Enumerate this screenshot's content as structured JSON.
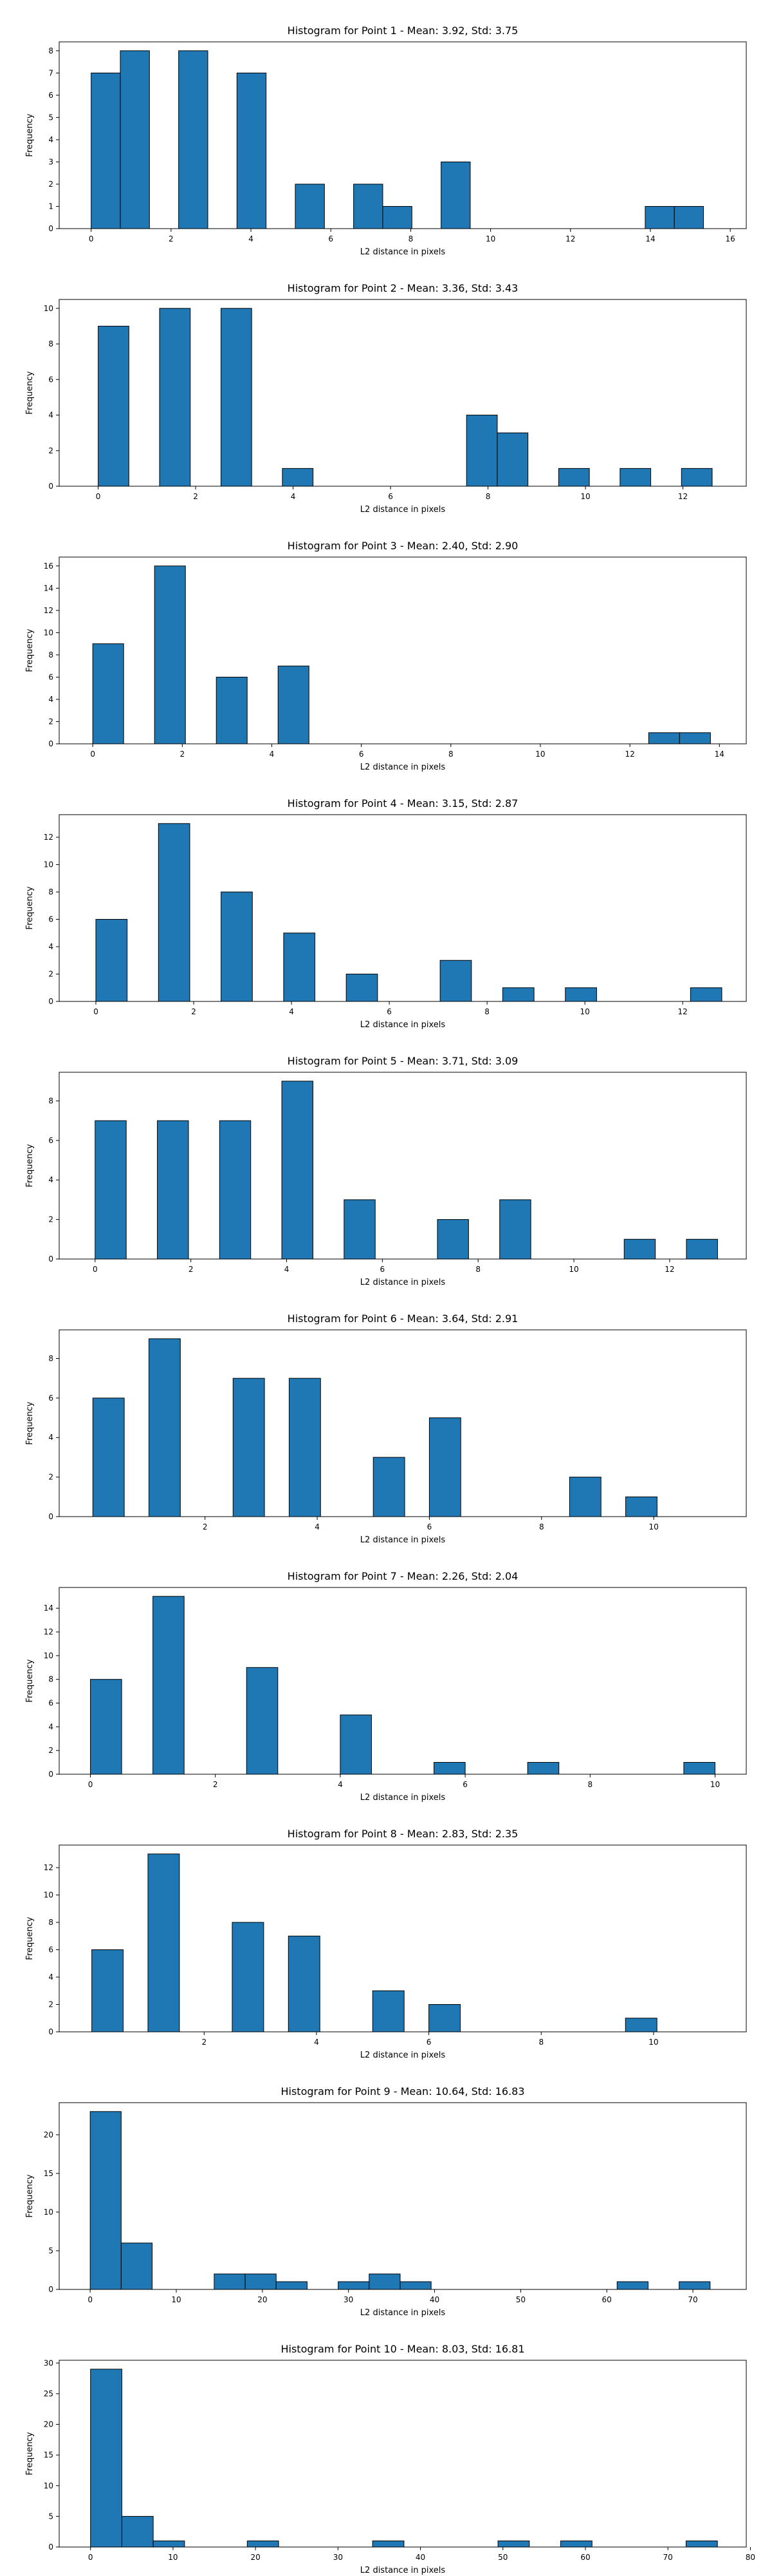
{
  "style": {
    "bar_color": "#1f77b4",
    "edge_color": "#000000",
    "background": "#ffffff"
  },
  "chart_data": [
    {
      "type": "bar",
      "title": "Histogram for Point 1 - Mean: 3.92, Std: 3.75",
      "xlabel": "L2 distance in pixels",
      "ylabel": "Frequency",
      "xlim": [
        -0.8,
        16.4
      ],
      "ylim": [
        0,
        8.4
      ],
      "xticks": [
        0,
        2,
        4,
        6,
        8,
        10,
        12,
        14,
        16
      ],
      "yticks": [
        0,
        1,
        2,
        3,
        4,
        5,
        6,
        7,
        8
      ],
      "bins": [
        {
          "x0": 0.0,
          "x1": 0.73,
          "count": 7
        },
        {
          "x0": 0.73,
          "x1": 1.46,
          "count": 8
        },
        {
          "x0": 2.19,
          "x1": 2.92,
          "count": 8
        },
        {
          "x0": 3.65,
          "x1": 4.38,
          "count": 7
        },
        {
          "x0": 5.11,
          "x1": 5.84,
          "count": 2
        },
        {
          "x0": 6.57,
          "x1": 7.3,
          "count": 2
        },
        {
          "x0": 7.3,
          "x1": 8.03,
          "count": 1
        },
        {
          "x0": 8.76,
          "x1": 9.49,
          "count": 3
        },
        {
          "x0": 13.87,
          "x1": 14.6,
          "count": 1
        },
        {
          "x0": 14.6,
          "x1": 15.33,
          "count": 1
        }
      ]
    },
    {
      "type": "bar",
      "title": "Histogram for Point 2 - Mean: 3.36, Std: 3.43",
      "xlabel": "L2 distance in pixels",
      "ylabel": "Frequency",
      "xlim": [
        -0.8,
        13.3
      ],
      "ylim": [
        0,
        10.5
      ],
      "xticks": [
        0,
        2,
        4,
        6,
        8,
        10,
        12
      ],
      "yticks": [
        0,
        2,
        4,
        6,
        8,
        10
      ],
      "bins": [
        {
          "x0": 0.0,
          "x1": 0.63,
          "count": 9
        },
        {
          "x0": 1.26,
          "x1": 1.89,
          "count": 10
        },
        {
          "x0": 2.52,
          "x1": 3.15,
          "count": 10
        },
        {
          "x0": 3.78,
          "x1": 4.41,
          "count": 1
        },
        {
          "x0": 7.56,
          "x1": 8.19,
          "count": 4
        },
        {
          "x0": 8.19,
          "x1": 8.82,
          "count": 3
        },
        {
          "x0": 9.45,
          "x1": 10.08,
          "count": 1
        },
        {
          "x0": 10.71,
          "x1": 11.34,
          "count": 1
        },
        {
          "x0": 11.97,
          "x1": 12.6,
          "count": 1
        }
      ]
    },
    {
      "type": "bar",
      "title": "Histogram for Point 3 - Mean: 2.40, Std: 2.90",
      "xlabel": "L2 distance in pixels",
      "ylabel": "Frequency",
      "xlim": [
        -0.75,
        14.6
      ],
      "ylim": [
        0,
        16.8
      ],
      "xticks": [
        0,
        2,
        4,
        6,
        8,
        10,
        12,
        14
      ],
      "yticks": [
        0,
        2,
        4,
        6,
        8,
        10,
        12,
        14,
        16
      ],
      "bins": [
        {
          "x0": 0.0,
          "x1": 0.69,
          "count": 9
        },
        {
          "x0": 1.38,
          "x1": 2.07,
          "count": 16
        },
        {
          "x0": 2.76,
          "x1": 3.45,
          "count": 6
        },
        {
          "x0": 4.14,
          "x1": 4.83,
          "count": 7
        },
        {
          "x0": 12.42,
          "x1": 13.11,
          "count": 1
        },
        {
          "x0": 13.11,
          "x1": 13.8,
          "count": 1
        }
      ]
    },
    {
      "type": "bar",
      "title": "Histogram for Point 4 - Mean: 3.15, Std: 2.87",
      "xlabel": "L2 distance in pixels",
      "ylabel": "Frequency",
      "xlim": [
        -0.75,
        13.3
      ],
      "ylim": [
        0,
        13.65
      ],
      "xticks": [
        0,
        2,
        4,
        6,
        8,
        10,
        12
      ],
      "yticks": [
        0,
        2,
        4,
        6,
        8,
        10,
        12
      ],
      "bins": [
        {
          "x0": 0.0,
          "x1": 0.64,
          "count": 6
        },
        {
          "x0": 1.28,
          "x1": 1.92,
          "count": 13
        },
        {
          "x0": 2.56,
          "x1": 3.2,
          "count": 8
        },
        {
          "x0": 3.84,
          "x1": 4.48,
          "count": 5
        },
        {
          "x0": 5.12,
          "x1": 5.76,
          "count": 2
        },
        {
          "x0": 7.04,
          "x1": 7.68,
          "count": 3
        },
        {
          "x0": 8.32,
          "x1": 8.96,
          "count": 1
        },
        {
          "x0": 9.6,
          "x1": 10.24,
          "count": 1
        },
        {
          "x0": 12.16,
          "x1": 12.8,
          "count": 1
        }
      ]
    },
    {
      "type": "bar",
      "title": "Histogram for Point 5 - Mean: 3.71, Std: 3.09",
      "xlabel": "L2 distance in pixels",
      "ylabel": "Frequency",
      "xlim": [
        -0.75,
        13.6
      ],
      "ylim": [
        0,
        9.45
      ],
      "xticks": [
        0,
        2,
        4,
        6,
        8,
        10,
        12
      ],
      "yticks": [
        0,
        2,
        4,
        6,
        8
      ],
      "bins": [
        {
          "x0": 0.0,
          "x1": 0.65,
          "count": 7
        },
        {
          "x0": 1.3,
          "x1": 1.95,
          "count": 7
        },
        {
          "x0": 2.6,
          "x1": 3.25,
          "count": 7
        },
        {
          "x0": 3.9,
          "x1": 4.55,
          "count": 9
        },
        {
          "x0": 5.2,
          "x1": 5.85,
          "count": 3
        },
        {
          "x0": 7.15,
          "x1": 7.8,
          "count": 2
        },
        {
          "x0": 8.45,
          "x1": 9.1,
          "count": 3
        },
        {
          "x0": 11.05,
          "x1": 11.7,
          "count": 1
        },
        {
          "x0": 12.35,
          "x1": 13.0,
          "count": 1
        }
      ]
    },
    {
      "type": "bar",
      "title": "Histogram for Point 6 - Mean: 3.64, Std: 2.91",
      "xlabel": "L2 distance in pixels",
      "ylabel": "Frequency",
      "xlim": [
        -0.6,
        11.65
      ],
      "ylim": [
        0,
        9.45
      ],
      "xticks": [
        2,
        4,
        6,
        8,
        10
      ],
      "yticks": [
        0,
        2,
        4,
        6,
        8
      ],
      "bins": [
        {
          "x0": 0.0,
          "x1": 0.56,
          "count": 6
        },
        {
          "x0": 1.0,
          "x1": 1.56,
          "count": 9
        },
        {
          "x0": 2.5,
          "x1": 3.06,
          "count": 7
        },
        {
          "x0": 3.5,
          "x1": 4.06,
          "count": 7
        },
        {
          "x0": 5.0,
          "x1": 5.56,
          "count": 3
        },
        {
          "x0": 6.0,
          "x1": 6.56,
          "count": 5
        },
        {
          "x0": 8.5,
          "x1": 9.06,
          "count": 2
        },
        {
          "x0": 9.5,
          "x1": 10.06,
          "count": 1
        }
      ]
    },
    {
      "type": "bar",
      "title": "Histogram for Point 7 - Mean: 2.26, Std: 2.04",
      "xlabel": "L2 distance in pixels",
      "ylabel": "Frequency",
      "xlim": [
        -0.5,
        10.5
      ],
      "ylim": [
        0,
        15.75
      ],
      "xticks": [
        0,
        2,
        4,
        6,
        8,
        10
      ],
      "yticks": [
        0,
        2,
        4,
        6,
        8,
        10,
        12,
        14
      ],
      "bins": [
        {
          "x0": 0.0,
          "x1": 0.5,
          "count": 8
        },
        {
          "x0": 1.0,
          "x1": 1.5,
          "count": 15
        },
        {
          "x0": 2.5,
          "x1": 3.0,
          "count": 9
        },
        {
          "x0": 4.0,
          "x1": 4.5,
          "count": 5
        },
        {
          "x0": 5.5,
          "x1": 6.0,
          "count": 1
        },
        {
          "x0": 7.0,
          "x1": 7.5,
          "count": 1
        },
        {
          "x0": 9.5,
          "x1": 10.0,
          "count": 1
        }
      ]
    },
    {
      "type": "bar",
      "title": "Histogram for Point 8 - Mean: 2.83, Std: 2.35",
      "xlabel": "L2 distance in pixels",
      "ylabel": "Frequency",
      "xlim": [
        -0.58,
        11.65
      ],
      "ylim": [
        0,
        13.65
      ],
      "xticks": [
        2,
        4,
        6,
        8,
        10
      ],
      "yticks": [
        0,
        2,
        4,
        6,
        8,
        10,
        12
      ],
      "bins": [
        {
          "x0": 0.0,
          "x1": 0.56,
          "count": 6
        },
        {
          "x0": 1.0,
          "x1": 1.56,
          "count": 13
        },
        {
          "x0": 2.5,
          "x1": 3.06,
          "count": 8
        },
        {
          "x0": 3.5,
          "x1": 4.06,
          "count": 7
        },
        {
          "x0": 5.0,
          "x1": 5.56,
          "count": 3
        },
        {
          "x0": 6.0,
          "x1": 6.56,
          "count": 2
        },
        {
          "x0": 9.5,
          "x1": 10.06,
          "count": 1
        }
      ]
    },
    {
      "type": "bar",
      "title": "Histogram for Point 9 - Mean: 10.64, Std: 16.83",
      "xlabel": "L2 distance in pixels",
      "ylabel": "Frequency",
      "xlim": [
        -3.6,
        76.2
      ],
      "ylim": [
        0,
        24.15
      ],
      "xticks": [
        0,
        10,
        20,
        30,
        40,
        50,
        60,
        70
      ],
      "yticks": [
        0,
        5,
        10,
        15,
        20
      ],
      "bins": [
        {
          "x0": 0.0,
          "x1": 3.6,
          "count": 23
        },
        {
          "x0": 3.6,
          "x1": 7.2,
          "count": 6
        },
        {
          "x0": 14.4,
          "x1": 18.0,
          "count": 2
        },
        {
          "x0": 18.0,
          "x1": 21.6,
          "count": 2
        },
        {
          "x0": 21.6,
          "x1": 25.2,
          "count": 1
        },
        {
          "x0": 28.8,
          "x1": 32.4,
          "count": 1
        },
        {
          "x0": 32.4,
          "x1": 36.0,
          "count": 2
        },
        {
          "x0": 36.0,
          "x1": 39.6,
          "count": 1
        },
        {
          "x0": 61.2,
          "x1": 64.8,
          "count": 1
        },
        {
          "x0": 68.4,
          "x1": 72.0,
          "count": 1
        }
      ]
    },
    {
      "type": "bar",
      "title": "Histogram for Point 10 - Mean: 8.03, Std: 16.81",
      "xlabel": "L2 distance in pixels",
      "ylabel": "Frequency",
      "xlim": [
        -3.8,
        79.5
      ],
      "ylim": [
        0,
        30.45
      ],
      "xticks": [
        0,
        10,
        20,
        30,
        40,
        50,
        60,
        70,
        80
      ],
      "yticks": [
        0,
        5,
        10,
        15,
        20,
        25,
        30
      ],
      "bins": [
        {
          "x0": 0.0,
          "x1": 3.8,
          "count": 29
        },
        {
          "x0": 3.8,
          "x1": 7.6,
          "count": 5
        },
        {
          "x0": 7.6,
          "x1": 11.4,
          "count": 1
        },
        {
          "x0": 19.0,
          "x1": 22.8,
          "count": 1
        },
        {
          "x0": 34.2,
          "x1": 38.0,
          "count": 1
        },
        {
          "x0": 49.4,
          "x1": 53.2,
          "count": 1
        },
        {
          "x0": 57.0,
          "x1": 60.8,
          "count": 1
        },
        {
          "x0": 72.2,
          "x1": 76.0,
          "count": 1
        }
      ]
    }
  ]
}
